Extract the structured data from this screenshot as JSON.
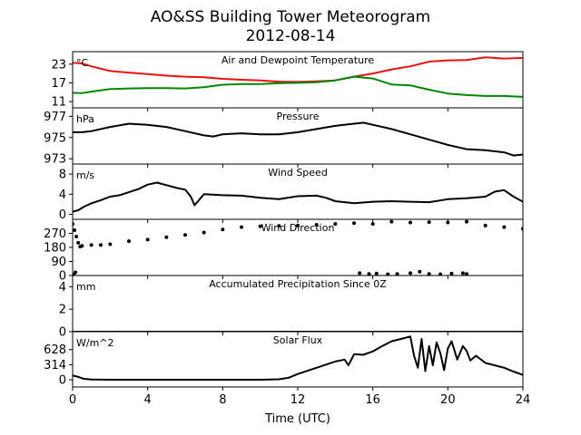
{
  "figure": {
    "title": "AO&SS Building Tower Meteorogram",
    "subtitle": "2012-08-14",
    "xlabel": "Time (UTC)"
  },
  "chart_data": [
    {
      "type": "line",
      "title": "Air and Dewpoint Temperature",
      "unit_label": "°C",
      "xlim": [
        0,
        24
      ],
      "ylim": [
        9,
        27
      ],
      "yticks": [
        11,
        17,
        23
      ],
      "xticks": [
        0,
        4,
        8,
        12,
        16,
        20,
        24
      ],
      "series": [
        {
          "color": "#ee1111",
          "x": [
            0,
            0.5,
            1,
            2,
            3,
            4,
            5,
            6,
            7,
            8,
            9,
            10,
            11,
            12,
            13,
            14,
            15,
            16,
            17,
            17.5,
            18,
            19,
            20,
            21,
            22,
            23,
            24
          ],
          "values": [
            23.5,
            23.2,
            22.3,
            20.8,
            20.3,
            19.8,
            19.3,
            19.0,
            18.8,
            18.3,
            18.0,
            17.8,
            17.4,
            17.3,
            17.5,
            17.8,
            19.0,
            20.0,
            21.3,
            21.8,
            22.3,
            23.8,
            24.2,
            24.3,
            25.2,
            24.8,
            25.0
          ]
        },
        {
          "color": "#008800",
          "x": [
            0,
            0.5,
            1,
            2,
            3,
            4,
            5,
            6,
            7,
            8,
            9,
            10,
            11,
            12,
            13,
            14,
            15,
            16,
            17,
            18,
            19,
            20,
            21,
            22,
            23,
            24
          ],
          "values": [
            13.8,
            13.7,
            14.2,
            15.0,
            15.2,
            15.3,
            15.3,
            15.2,
            15.6,
            16.4,
            16.6,
            16.6,
            16.9,
            17.0,
            17.2,
            17.8,
            19.0,
            18.4,
            16.5,
            16.2,
            14.8,
            13.6,
            13.1,
            12.8,
            12.8,
            12.5
          ]
        }
      ]
    },
    {
      "type": "line",
      "title": "Pressure",
      "unit_label": "hPa",
      "xlim": [
        0,
        24
      ],
      "ylim": [
        972.5,
        977.8
      ],
      "yticks": [
        973,
        975,
        977
      ],
      "series": [
        {
          "color": "#000000",
          "x": [
            0,
            0.5,
            1,
            2,
            3,
            4,
            5,
            6,
            7,
            7.5,
            8,
            9,
            10,
            11,
            12,
            13,
            14,
            15,
            15.5,
            16,
            17,
            18,
            19,
            20,
            21,
            22,
            23,
            23.5,
            24
          ],
          "values": [
            975.5,
            975.5,
            975.6,
            976.0,
            976.3,
            976.2,
            976.0,
            975.6,
            975.2,
            975.1,
            975.3,
            975.4,
            975.3,
            975.3,
            975.5,
            975.8,
            976.1,
            976.3,
            976.4,
            976.2,
            975.8,
            975.3,
            974.8,
            974.3,
            973.9,
            973.8,
            973.6,
            973.3,
            973.4
          ]
        }
      ]
    },
    {
      "type": "line",
      "title": "Wind Speed",
      "unit_label": "m/s",
      "xlim": [
        0,
        24
      ],
      "ylim": [
        -1,
        10
      ],
      "yticks": [
        0,
        4,
        8
      ],
      "series": [
        {
          "color": "#000000",
          "x": [
            0,
            0.3,
            0.6,
            1,
            1.5,
            2,
            2.5,
            3,
            3.5,
            4,
            4.5,
            5,
            5.5,
            6,
            6.3,
            6.5,
            7,
            8,
            9,
            10,
            11,
            12,
            13,
            13.5,
            14,
            15,
            16,
            17,
            18,
            19,
            20,
            21,
            22,
            22.5,
            23,
            23.5,
            24
          ],
          "values": [
            0.5,
            0.8,
            1.5,
            2.2,
            2.8,
            3.5,
            3.8,
            4.4,
            5.0,
            5.9,
            6.3,
            5.8,
            5.3,
            4.9,
            3.5,
            1.8,
            4.0,
            3.8,
            3.7,
            3.3,
            3.0,
            3.6,
            3.7,
            3.3,
            2.6,
            2.2,
            2.5,
            2.6,
            2.5,
            2.4,
            3.0,
            3.2,
            3.5,
            4.5,
            4.8,
            3.5,
            2.5
          ]
        }
      ]
    },
    {
      "type": "scatter",
      "title": "Wind Direction",
      "unit_label": "",
      "xlim": [
        0,
        24
      ],
      "ylim": [
        0,
        360
      ],
      "yticks": [
        0,
        90,
        180,
        270
      ],
      "series": [
        {
          "color": "#000000",
          "x": [
            0,
            0.1,
            0.2,
            0.3,
            0.4,
            0.5,
            1,
            1.5,
            2,
            3,
            4,
            5,
            6,
            7,
            8,
            9,
            10,
            11,
            12,
            13,
            14,
            15,
            16,
            17,
            18,
            19,
            20,
            21,
            22,
            23,
            24,
            15.3,
            15.8,
            16.2,
            16.8,
            17.3,
            18.0,
            18.5,
            19.0,
            19.6,
            20.2,
            20.8,
            21.0,
            0.05,
            0.15
          ],
          "values": [
            330,
            290,
            250,
            210,
            185,
            190,
            195,
            195,
            200,
            220,
            230,
            245,
            260,
            275,
            295,
            310,
            315,
            318,
            320,
            325,
            330,
            335,
            330,
            345,
            340,
            342,
            340,
            345,
            320,
            310,
            300,
            15,
            10,
            12,
            8,
            10,
            15,
            25,
            10,
            8,
            12,
            15,
            10,
            5,
            20
          ]
        }
      ]
    },
    {
      "type": "line",
      "title": "Accumulated Precipitation Since 0Z",
      "unit_label": "mm",
      "xlim": [
        0,
        24
      ],
      "ylim": [
        0,
        5
      ],
      "yticks": [
        0,
        2,
        4
      ],
      "series": [
        {
          "color": "#000000",
          "x": [
            0,
            24
          ],
          "values": [
            0,
            0
          ]
        }
      ]
    },
    {
      "type": "line",
      "title": "Solar Flux",
      "unit_label": "W/m^2",
      "xlim": [
        0,
        24
      ],
      "ylim": [
        -150,
        1000
      ],
      "yticks": [
        0,
        314,
        628
      ],
      "series": [
        {
          "color": "#000000",
          "x": [
            0,
            0.3,
            0.6,
            1,
            2,
            4,
            6,
            8,
            10,
            11,
            11.5,
            12,
            13,
            14,
            14.5,
            14.7,
            15,
            15.5,
            16,
            16.5,
            17,
            17.5,
            18,
            18.2,
            18.4,
            18.6,
            18.8,
            19,
            19.2,
            19.4,
            19.6,
            19.8,
            20,
            20.2,
            20.5,
            20.8,
            21,
            21.2,
            21.5,
            22,
            22.5,
            23,
            23.5,
            24
          ],
          "values": [
            90,
            60,
            20,
            5,
            0,
            0,
            0,
            0,
            0,
            10,
            40,
            120,
            250,
            380,
            420,
            300,
            530,
            520,
            590,
            700,
            800,
            850,
            900,
            500,
            250,
            850,
            180,
            700,
            300,
            780,
            550,
            200,
            650,
            800,
            420,
            700,
            600,
            400,
            500,
            350,
            300,
            250,
            170,
            100
          ]
        }
      ]
    }
  ]
}
